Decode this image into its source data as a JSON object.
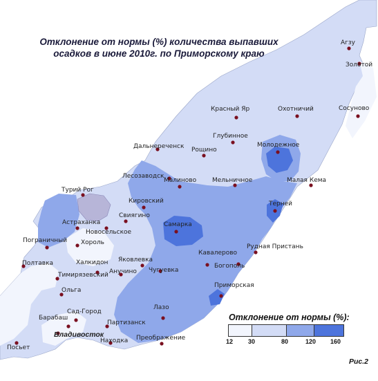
{
  "title": {
    "line1": "Отклонение от нормы (%) количества выпавших",
    "line2": "осадков в июне  2010г. по Приморскому краю"
  },
  "colors": {
    "class_12_30": "#f2f5fd",
    "class_30_80": "#d3dcf6",
    "class_80_120": "#8fa8ea",
    "class_120_160": "#4d74dc",
    "lake": "#b7b5d8",
    "station_dot": "#7a1020"
  },
  "stations": [
    {
      "name": "Агзу"
    },
    {
      "name": "Золотой"
    },
    {
      "name": "Сосуново"
    },
    {
      "name": "Красный Яр"
    },
    {
      "name": "Охотничий"
    },
    {
      "name": "Глубинное"
    },
    {
      "name": "Дальнереченск"
    },
    {
      "name": "Рощино"
    },
    {
      "name": "Молодежное"
    },
    {
      "name": "Лесозаводск"
    },
    {
      "name": "Малиново"
    },
    {
      "name": "Мельничное"
    },
    {
      "name": "Малая Кема"
    },
    {
      "name": "Турий Рог"
    },
    {
      "name": "Кировский"
    },
    {
      "name": "Терней"
    },
    {
      "name": "Свиягино"
    },
    {
      "name": "Астраханка"
    },
    {
      "name": "Новосельское"
    },
    {
      "name": "Самарка"
    },
    {
      "name": "Пограничный"
    },
    {
      "name": "Хороль"
    },
    {
      "name": "Рудная Пристань"
    },
    {
      "name": "Яковлевка"
    },
    {
      "name": "Кавалерово"
    },
    {
      "name": "Халкидон"
    },
    {
      "name": "Полтавка"
    },
    {
      "name": "Богополь"
    },
    {
      "name": "Чугуевка"
    },
    {
      "name": "Анучино"
    },
    {
      "name": "Тимирязевский"
    },
    {
      "name": "Ольга"
    },
    {
      "name": "Приморская"
    },
    {
      "name": "Лазо"
    },
    {
      "name": "Сад-Город"
    },
    {
      "name": "Барабаш"
    },
    {
      "name": "Партизанск"
    },
    {
      "name": "Владивосток",
      "bold": true
    },
    {
      "name": "Находка"
    },
    {
      "name": "Преображение"
    },
    {
      "name": "Посьет"
    }
  ],
  "legend": {
    "title": "Отклонение от нормы (%):",
    "ticks": [
      "12",
      "30",
      "80",
      "120",
      "160"
    ]
  },
  "figure_label": "Рис.2"
}
